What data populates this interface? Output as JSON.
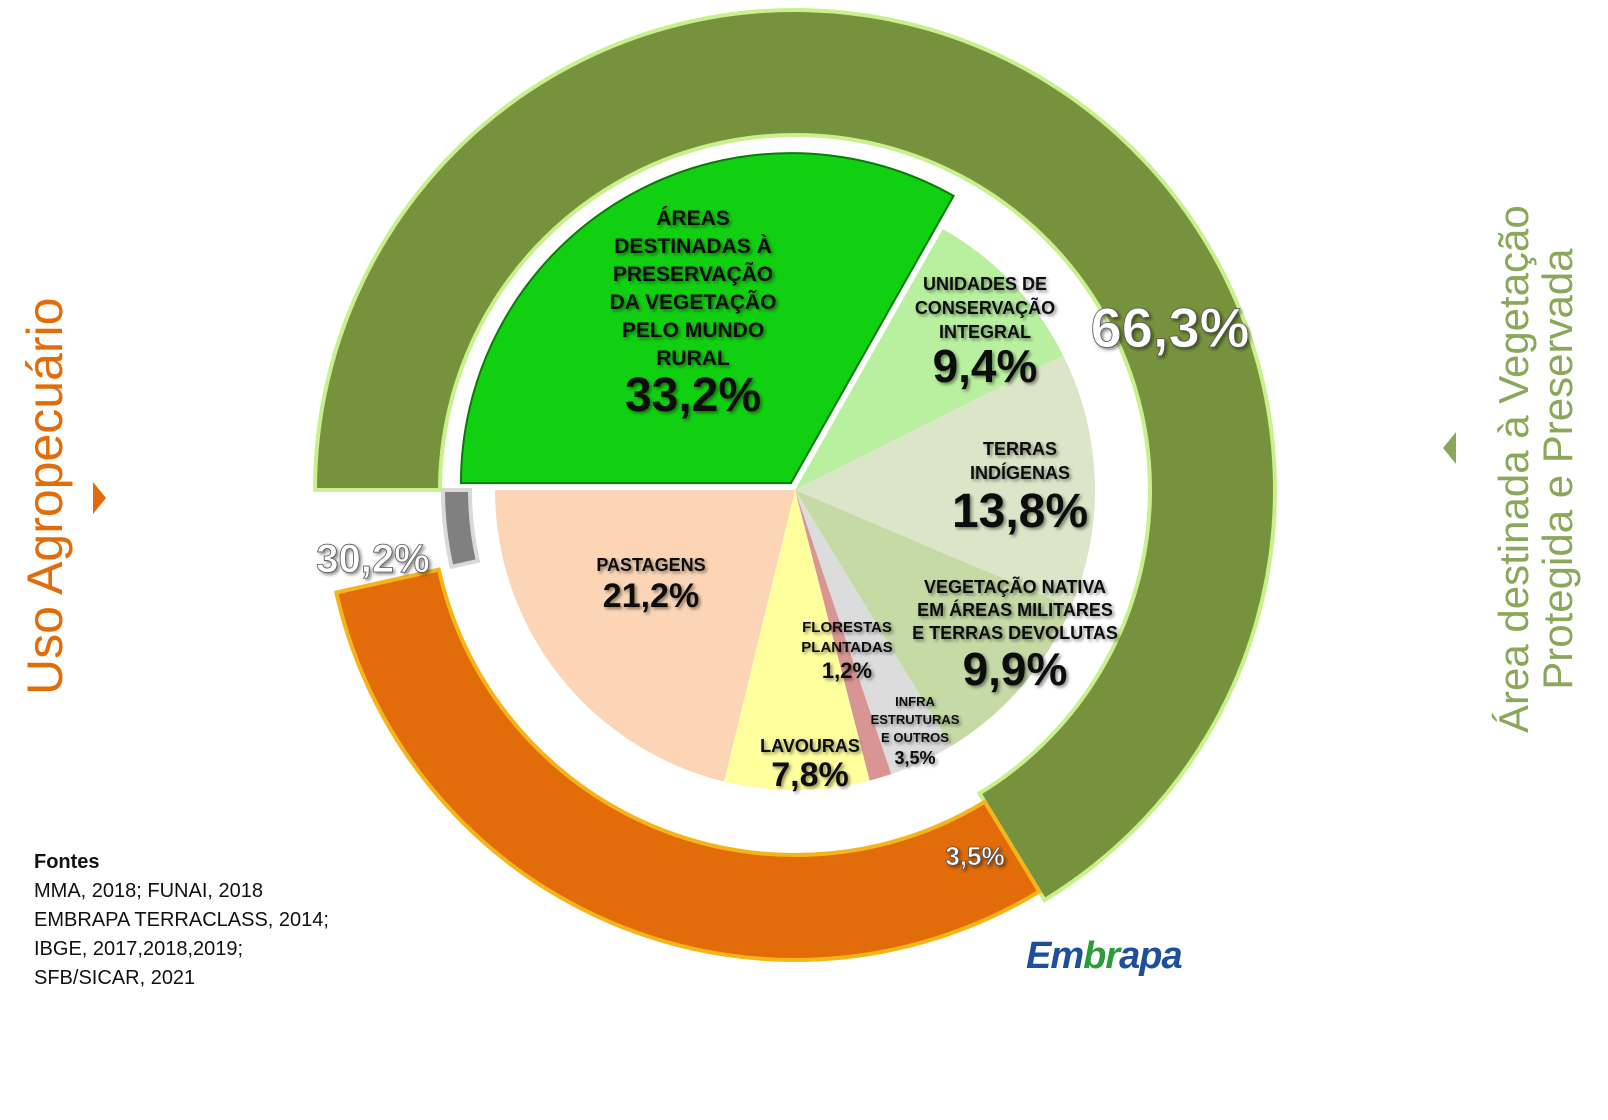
{
  "colors": {
    "protected_ring": "#77923c",
    "protected_ring_stroke": "#c8f08c",
    "agro_ring": "#e36c0a",
    "agro_ring_stroke": "#f5b51a",
    "other_ring": "#808080",
    "other_ring_stroke": "#d9d9d9",
    "left_label": "#e36c0a",
    "right_label": "#8aa85a"
  },
  "labels": {
    "left": "Uso Agropecuário",
    "right_line1": "Área destinada à Vegetação",
    "right_line2": "Protegida e Preservada"
  },
  "sources": {
    "title": "Fontes",
    "lines": [
      "MMA, 2018; FUNAI, 2018",
      "EMBRAPA TERRACLASS, 2014;",
      "IBGE, 2017,2018,2019;",
      "SFB/SICAR, 2021"
    ]
  },
  "logo": {
    "text_a": "Em",
    "text_b": "br",
    "text_c": "apa"
  },
  "chart_data": {
    "type": "pie",
    "outer_ring": [
      {
        "label": "66,3%",
        "value": 66.3,
        "group": "Área destinada à Vegetação Protegida e Preservada"
      },
      {
        "label": "30,2%",
        "value": 30.2,
        "group": "Uso Agropecuário"
      },
      {
        "label": "3,5%",
        "value": 3.5,
        "group": ""
      }
    ],
    "inner_pie": [
      {
        "key": "rural",
        "lines": [
          "ÁREAS",
          "DESTINADAS À",
          "PRESERVAÇÃO",
          "DA VEGETAÇÃO",
          "PELO MUNDO",
          "RURAL"
        ],
        "value_label": "33,2%",
        "value": 33.2,
        "color": "#11d011",
        "exploded": true
      },
      {
        "key": "uc",
        "lines": [
          "UNIDADES DE",
          "CONSERVAÇÃO",
          "INTEGRAL"
        ],
        "value_label": "9,4%",
        "value": 9.4,
        "color": "#b8f0a0"
      },
      {
        "key": "ti",
        "lines": [
          "TERRAS",
          "INDÍGENAS"
        ],
        "value_label": "13,8%",
        "value": 13.8,
        "color": "#dbe6c8"
      },
      {
        "key": "vn",
        "lines": [
          "VEGETAÇÃO NATIVA",
          "EM ÁREAS MILITARES",
          "E TERRAS DEVOLUTAS"
        ],
        "value_label": "9,9%",
        "value": 9.9,
        "color": "#c6daa6"
      },
      {
        "key": "infra",
        "lines": [
          "INFRA",
          "ESTRUTURAS",
          "E OUTROS"
        ],
        "value_label": "3,5%",
        "value": 3.5,
        "color": "#dcdcdc"
      },
      {
        "key": "florestas",
        "lines": [
          "FLORESTAS",
          "PLANTADAS"
        ],
        "value_label": "1,2%",
        "value": 1.2,
        "color": "#d99594"
      },
      {
        "key": "lavouras",
        "lines": [
          "LAVOURAS"
        ],
        "value_label": "7,8%",
        "value": 7.8,
        "color": "#ffff9e"
      },
      {
        "key": "pastagens",
        "lines": [
          "PASTAGENS"
        ],
        "value_label": "21,2%",
        "value": 21.2,
        "color": "#fbd5b5"
      }
    ]
  }
}
